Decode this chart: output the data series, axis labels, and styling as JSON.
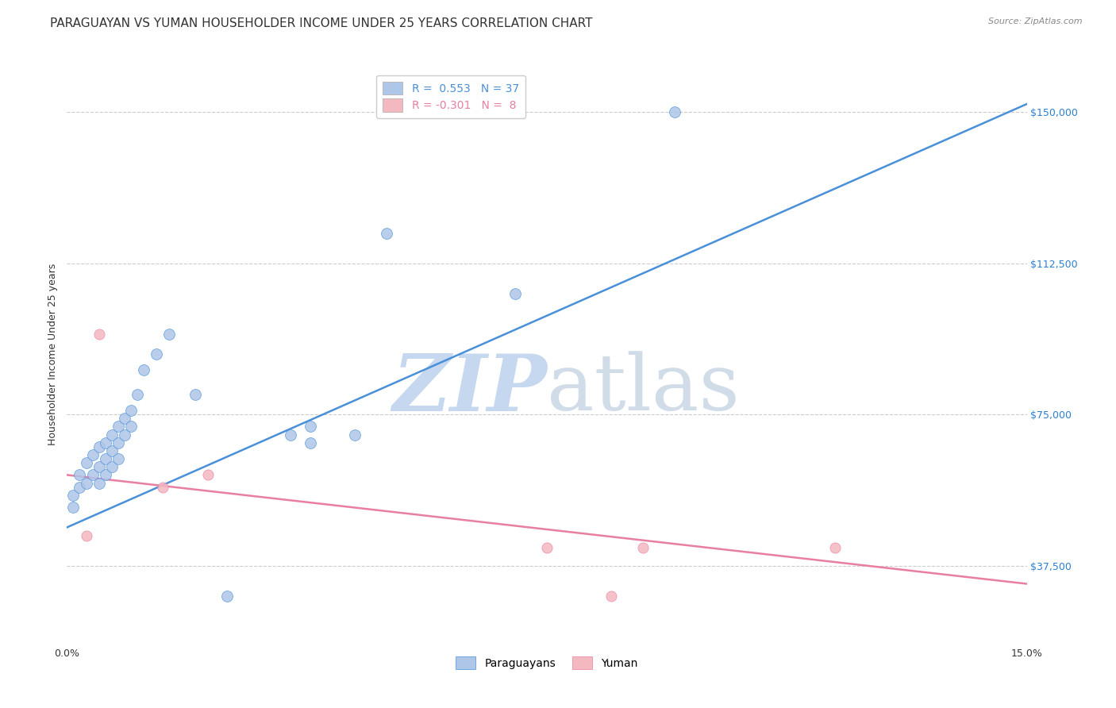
{
  "title": "PARAGUAYAN VS YUMAN HOUSEHOLDER INCOME UNDER 25 YEARS CORRELATION CHART",
  "source": "Source: ZipAtlas.com",
  "xlabel_ticks": [
    "0.0%",
    "15.0%"
  ],
  "ylabel_label": "Householder Income Under 25 years",
  "ylabel_tick_labels": [
    "$37,500",
    "$75,000",
    "$112,500",
    "$150,000"
  ],
  "ylabel_values": [
    37500,
    75000,
    112500,
    150000
  ],
  "xmin": 0.0,
  "xmax": 0.15,
  "ymin": 18000,
  "ymax": 162000,
  "legend_entries": [
    {
      "label": "R =  0.553   N = 37",
      "color": "#aec6e8"
    },
    {
      "label": "R = -0.301   N =  8",
      "color": "#f4b8c1"
    }
  ],
  "paraguayan_x": [
    0.001,
    0.001,
    0.002,
    0.002,
    0.003,
    0.003,
    0.004,
    0.004,
    0.005,
    0.005,
    0.005,
    0.006,
    0.006,
    0.006,
    0.007,
    0.007,
    0.007,
    0.008,
    0.008,
    0.008,
    0.009,
    0.009,
    0.01,
    0.01,
    0.011,
    0.012,
    0.014,
    0.016,
    0.02,
    0.025,
    0.035,
    0.038,
    0.038,
    0.045,
    0.05,
    0.07,
    0.095
  ],
  "paraguayan_y": [
    55000,
    52000,
    60000,
    57000,
    63000,
    58000,
    65000,
    60000,
    67000,
    62000,
    58000,
    68000,
    64000,
    60000,
    70000,
    66000,
    62000,
    72000,
    68000,
    64000,
    74000,
    70000,
    76000,
    72000,
    80000,
    86000,
    90000,
    95000,
    80000,
    30000,
    70000,
    68000,
    72000,
    70000,
    120000,
    105000,
    150000
  ],
  "yuman_x": [
    0.003,
    0.005,
    0.015,
    0.022,
    0.075,
    0.085,
    0.09,
    0.12
  ],
  "yuman_y": [
    45000,
    95000,
    57000,
    60000,
    42000,
    30000,
    42000,
    42000
  ],
  "blue_line_x": [
    0.0,
    0.15
  ],
  "blue_line_y": [
    47000,
    152000
  ],
  "pink_line_x": [
    0.0,
    0.15
  ],
  "pink_line_y": [
    60000,
    33000
  ],
  "dot_size_paraguayan": 100,
  "dot_size_yuman": 90,
  "paraguayan_color": "#aec6e8",
  "yuman_color": "#f4b8c1",
  "blue_line_color": "#4a90d9",
  "pink_line_color": "#e87fa0",
  "grid_color": "#cccccc",
  "watermark_zip": "ZIP",
  "watermark_atlas": "atlas",
  "watermark_color_zip": "#c5d8f0",
  "watermark_color_atlas": "#d0dce8",
  "background_color": "#ffffff",
  "title_fontsize": 11,
  "axis_label_fontsize": 9,
  "tick_fontsize": 9,
  "legend_fontsize": 10
}
